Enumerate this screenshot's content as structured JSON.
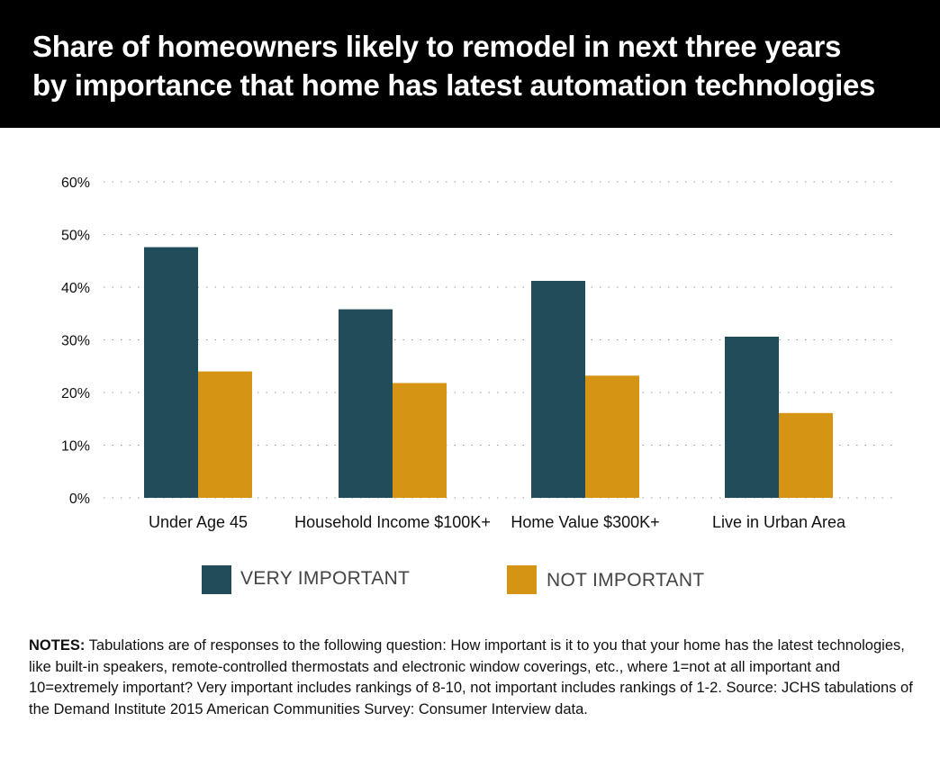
{
  "header": {
    "title_line1": "Share of homeowners likely to remodel in next three years",
    "title_line2": "by importance that home has latest automation technologies"
  },
  "colors": {
    "very_important": "#214d5b",
    "not_important": "#d59414",
    "header_bg": "#000000"
  },
  "chart_data": {
    "type": "bar",
    "title": "Share of homeowners likely to remodel in next three years by importance that home has latest automation technologies",
    "xlabel": "",
    "ylabel": "",
    "ylim": [
      0,
      60
    ],
    "yticks": [
      0,
      10,
      20,
      30,
      40,
      50,
      60
    ],
    "ytick_labels": [
      "0%",
      "10%",
      "20%",
      "30%",
      "40%",
      "50%",
      "60%"
    ],
    "grid": true,
    "categories": [
      "Under Age 45",
      "Household Income $100K+",
      "Home Value $300K+",
      "Live in Urban Area"
    ],
    "series": [
      {
        "name": "VERY IMPORTANT",
        "color": "#214d5b",
        "values": [
          47.6,
          35.8,
          41.2,
          30.6
        ]
      },
      {
        "name": "NOT IMPORTANT",
        "color": "#d59414",
        "values": [
          24.0,
          21.8,
          23.2,
          16.1
        ]
      }
    ],
    "legend_position": "bottom"
  },
  "notes": {
    "label": "NOTES:",
    "text": "Tabulations are of responses to the following question: How important is it to you that your home has the latest technologies, like built-in speakers, remote-controlled thermostats and electronic window coverings, etc., where 1=not at all important and 10=extremely important? Very important includes rankings of 8-10, not important includes rankings of 1-2. Source: JCHS tabulations of the Demand Institute 2015 American Communities Survey: Consumer Interview data."
  }
}
